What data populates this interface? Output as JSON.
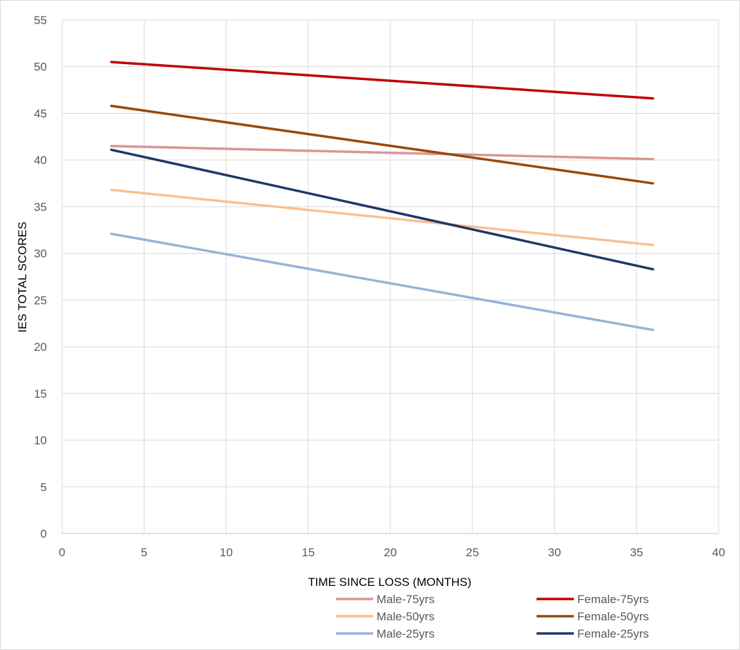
{
  "chart_data": {
    "type": "line",
    "title": "",
    "xlabel": "TIME SINCE LOSS (MONTHS)",
    "ylabel": "IES TOTAL SCORES",
    "xlim": [
      0,
      40
    ],
    "ylim": [
      0,
      55
    ],
    "xticks": [
      0,
      5,
      10,
      15,
      20,
      25,
      30,
      35,
      40
    ],
    "yticks": [
      0,
      5,
      10,
      15,
      20,
      25,
      30,
      35,
      40,
      45,
      50,
      55
    ],
    "grid": true,
    "legend_position": "bottom",
    "series": [
      {
        "name": "Male-75yrs",
        "color": "#d99694",
        "x": [
          3,
          36
        ],
        "y": [
          41.5,
          40.1
        ]
      },
      {
        "name": "Female-75yrs",
        "color": "#c00000",
        "x": [
          3,
          36
        ],
        "y": [
          50.5,
          46.6
        ]
      },
      {
        "name": "Male-50yrs",
        "color": "#fac090",
        "x": [
          3,
          36
        ],
        "y": [
          36.8,
          30.9
        ]
      },
      {
        "name": "Female-50yrs",
        "color": "#984807",
        "x": [
          3,
          36
        ],
        "y": [
          45.8,
          37.5
        ]
      },
      {
        "name": "Male-25yrs",
        "color": "#95b3d7",
        "x": [
          3,
          36
        ],
        "y": [
          32.1,
          21.8
        ]
      },
      {
        "name": "Female-25yrs",
        "color": "#1f3864",
        "x": [
          3,
          36
        ],
        "y": [
          41.1,
          28.3
        ]
      }
    ]
  }
}
